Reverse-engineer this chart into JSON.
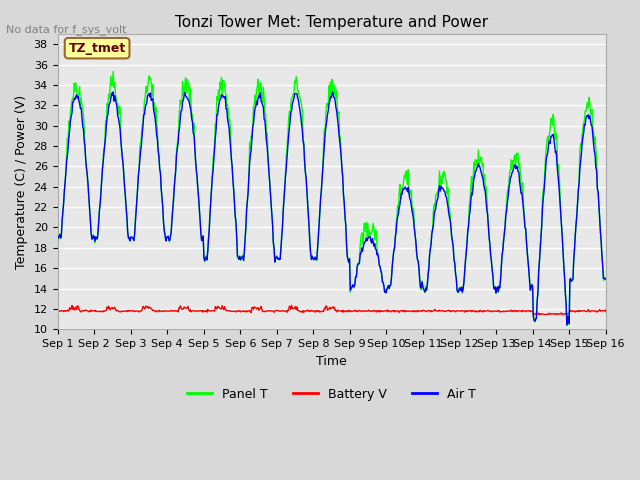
{
  "title": "Tonzi Tower Met: Temperature and Power",
  "no_data_label": "No data for f_sys_volt",
  "ylabel": "Temperature (C) / Power (V)",
  "xlabel": "Time",
  "ylim": [
    10,
    39
  ],
  "yticks": [
    10,
    12,
    14,
    16,
    18,
    20,
    22,
    24,
    26,
    28,
    30,
    32,
    34,
    36,
    38
  ],
  "xtick_labels": [
    "Sep 1",
    "Sep 2",
    "Sep 3",
    "Sep 4",
    "Sep 5",
    "Sep 6",
    "Sep 7",
    "Sep 8",
    "Sep 9",
    "Sep 10",
    "Sep 11",
    "Sep 12",
    "Sep 13",
    "Sep 14",
    "Sep 15",
    "Sep 16"
  ],
  "panel_color": "#00ff00",
  "battery_color": "#ff0000",
  "air_color": "#0000ff",
  "bg_color": "#e8e8e8",
  "plot_bg": "#e8e8e8",
  "legend_label_panel": "Panel T",
  "legend_label_battery": "Battery V",
  "legend_label_air": "Air T",
  "annotation_text": "TZ_tmet",
  "annotation_box_color": "#ffff99",
  "annotation_border_color": "#996633"
}
